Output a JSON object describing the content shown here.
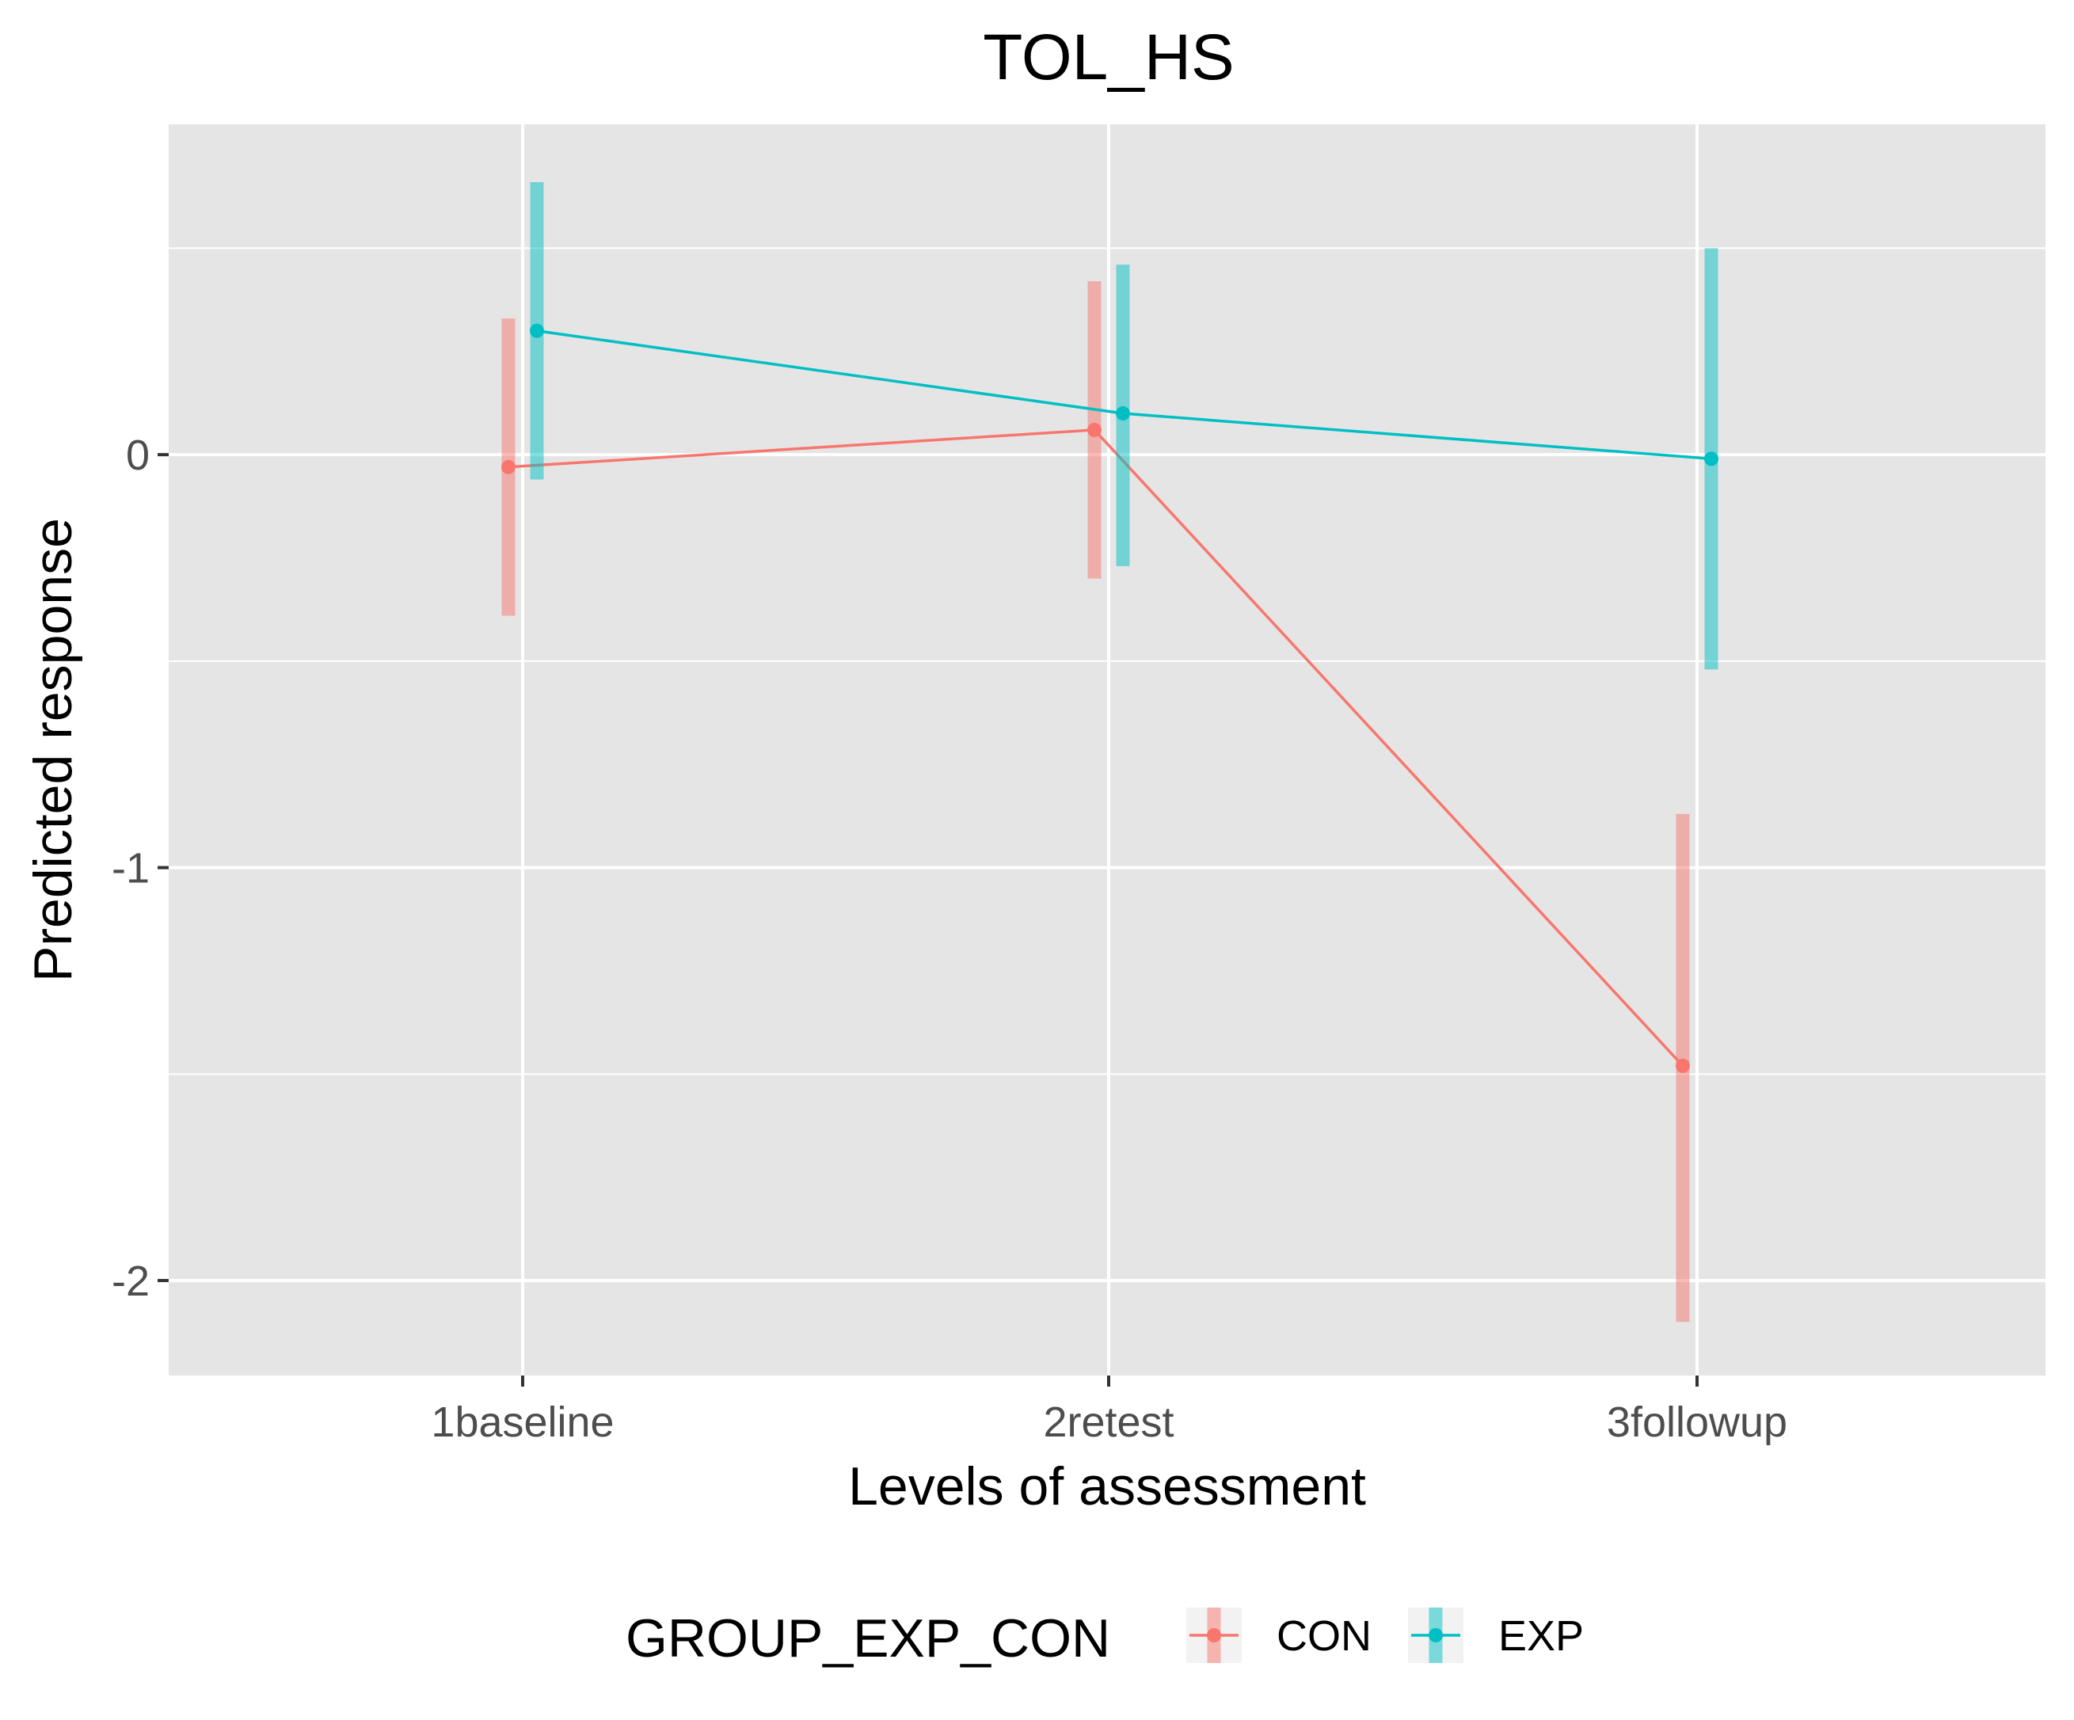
{
  "chart_data": {
    "type": "line",
    "title": "TOL_HS",
    "xlabel": "Levels of assessment",
    "ylabel": "Predicted response",
    "categories": [
      "1baseline",
      "2retest",
      "3followup"
    ],
    "ylim": [
      -2.23,
      0.8
    ],
    "yticks": [
      0,
      -1,
      -2
    ],
    "ytick_labels": [
      "0",
      "-1",
      "-2"
    ],
    "grid": true,
    "legend": {
      "title": "GROUP_EXP_CON",
      "position": "bottom"
    },
    "series": [
      {
        "name": "CON",
        "color": "#F8766D",
        "values": [
          -0.03,
          0.06,
          -1.48
        ],
        "ci_low": [
          -0.39,
          -0.3,
          -2.1
        ],
        "ci_high": [
          0.33,
          0.42,
          -0.87
        ]
      },
      {
        "name": "EXP",
        "color": "#00BFC4",
        "values": [
          0.3,
          0.1,
          -0.01
        ],
        "ci_low": [
          -0.06,
          -0.27,
          -0.52
        ],
        "ci_high": [
          0.66,
          0.46,
          0.5
        ]
      }
    ]
  }
}
